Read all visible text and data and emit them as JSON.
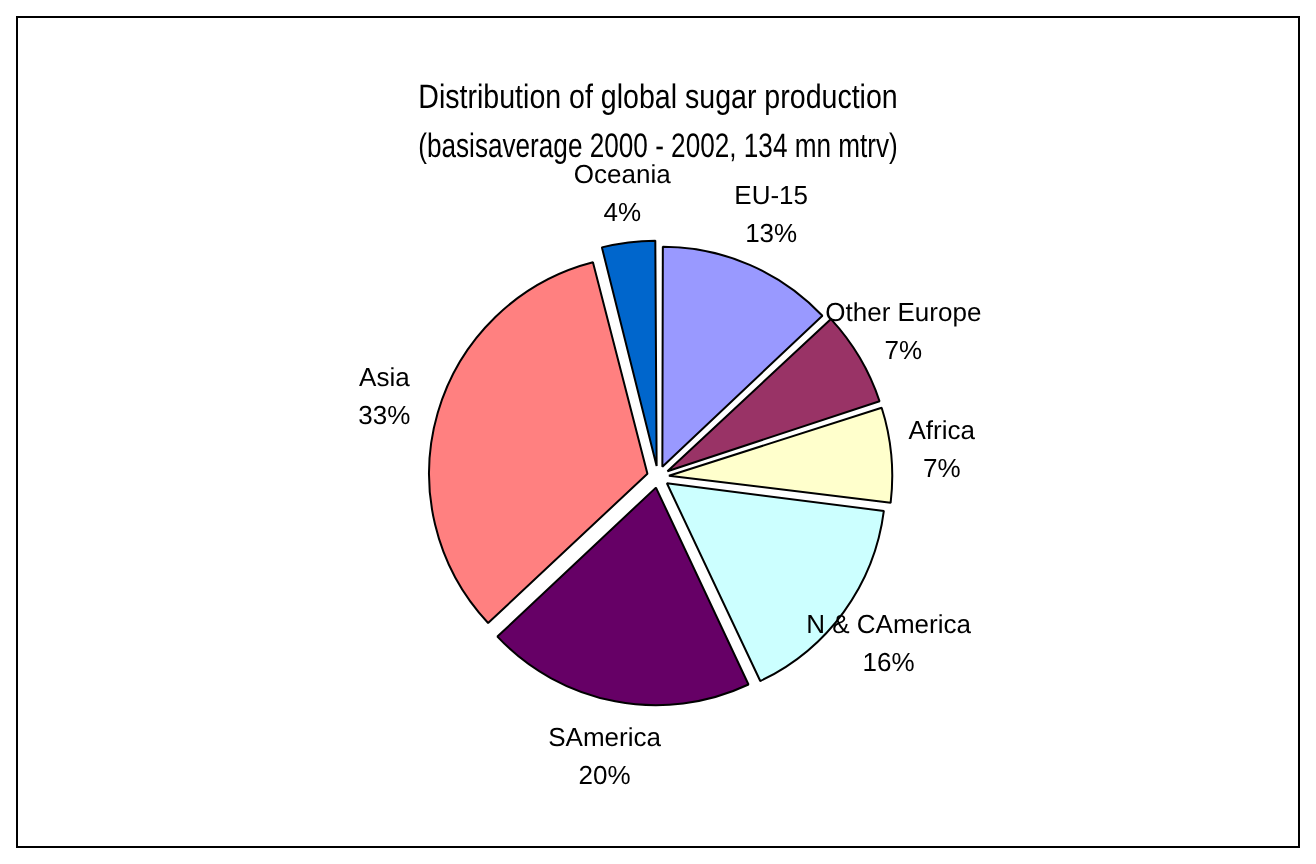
{
  "chart_data": {
    "type": "pie",
    "title": "Distribution of global sugar production",
    "subtitle": "(basisaverage 2000 - 2002, 134 mn mtrv)",
    "categories": [
      "EU-15",
      "Other Europe",
      "Africa",
      "N & CAmerica",
      "SAmerica",
      "Asia",
      "Oceania"
    ],
    "values": [
      13,
      7,
      7,
      16,
      20,
      33,
      4
    ],
    "colors": [
      "#9999ff",
      "#993366",
      "#ffffcc",
      "#ccffff",
      "#660066",
      "#ff8080",
      "#0066cc"
    ],
    "value_labels": [
      "13%",
      "7%",
      "7%",
      "16%",
      "20%",
      "33%",
      "4%"
    ],
    "legend": false
  }
}
